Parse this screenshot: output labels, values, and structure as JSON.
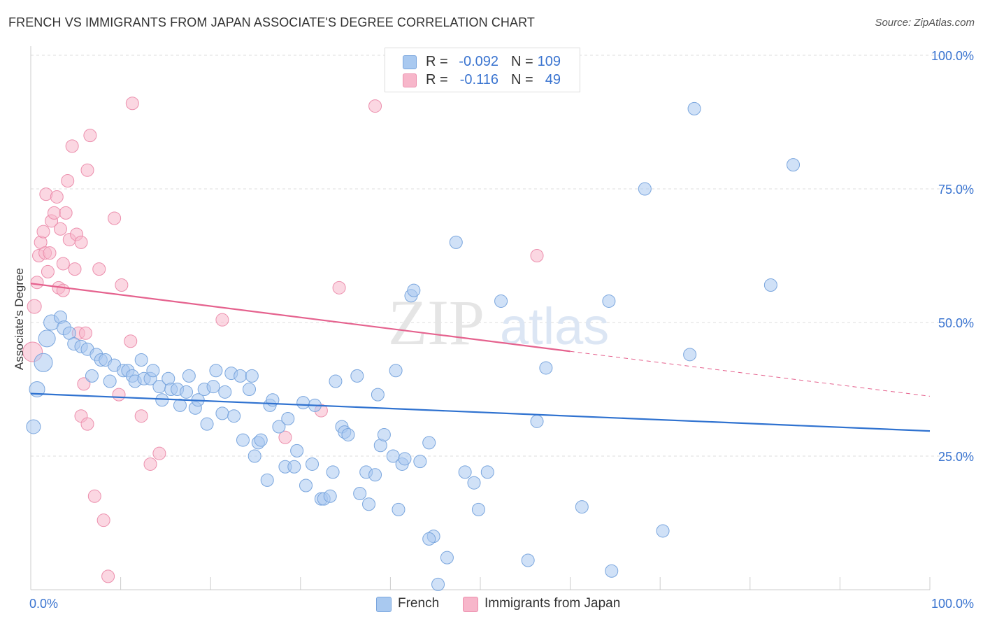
{
  "title": "FRENCH VS IMMIGRANTS FROM JAPAN ASSOCIATE'S DEGREE CORRELATION CHART",
  "source": "Source: ZipAtlas.com",
  "watermark": {
    "zip": "ZIP",
    "atlas": "atlas"
  },
  "legend": {
    "french": {
      "r_label": "R =",
      "r_value": "-0.092",
      "n_label": "N =",
      "n_value": "109"
    },
    "japan": {
      "r_label": "R =",
      "r_value": "-0.116",
      "n_label": "N =",
      "n_value": "49"
    }
  },
  "bottom_legend": {
    "french": "French",
    "japan": "Immigrants from Japan"
  },
  "colors": {
    "french_fill": "#a9c9f0",
    "french_stroke": "#7aa6de",
    "french_line": "#2f72d0",
    "japan_fill": "#f7b6ca",
    "japan_stroke": "#ec8fad",
    "japan_line": "#e5628e",
    "axis_text": "#3a74d0",
    "grid": "#dddddd"
  },
  "chart_data": {
    "type": "scatter",
    "title": "FRENCH VS IMMIGRANTS FROM JAPAN ASSOCIATE'S DEGREE CORRELATION CHART",
    "xlabel": "",
    "ylabel": "Associate's Degree",
    "xlim": [
      0,
      100
    ],
    "ylim": [
      0,
      100
    ],
    "x_tick_labels": [
      "0.0%",
      "100.0%"
    ],
    "y_ticks": [
      25,
      50,
      75,
      100
    ],
    "y_tick_labels": [
      "25.0%",
      "50.0%",
      "75.0%",
      "100.0%"
    ],
    "grid": true,
    "series": [
      {
        "name": "French",
        "r": -0.092,
        "n": 109,
        "trend": {
          "x0": 0,
          "y0": 36.7,
          "x1": 100,
          "y1": 29.7
        },
        "points": [
          [
            0.3,
            30.5,
            16
          ],
          [
            0.7,
            37.5,
            18
          ],
          [
            1.4,
            42.5,
            22
          ],
          [
            1.8,
            47,
            20
          ],
          [
            2.3,
            50,
            18
          ],
          [
            3.3,
            51,
            14
          ],
          [
            3.7,
            49,
            16
          ],
          [
            4.3,
            48,
            14
          ],
          [
            4.8,
            46,
            14
          ],
          [
            5.6,
            45.5,
            14
          ],
          [
            6.3,
            45,
            14
          ],
          [
            7.3,
            44,
            14
          ],
          [
            7.8,
            43,
            14
          ],
          [
            8.3,
            43,
            14
          ],
          [
            6.8,
            40,
            14
          ],
          [
            8.8,
            39,
            14
          ],
          [
            9.3,
            42,
            14
          ],
          [
            10.3,
            41,
            14
          ],
          [
            10.8,
            41,
            14
          ],
          [
            11.3,
            40,
            14
          ],
          [
            11.6,
            39,
            14
          ],
          [
            12.3,
            43,
            14
          ],
          [
            12.6,
            39.5,
            14
          ],
          [
            13.3,
            39.5,
            14
          ],
          [
            13.6,
            41,
            14
          ],
          [
            14.3,
            38,
            14
          ],
          [
            14.6,
            35.5,
            14
          ],
          [
            15.3,
            39.5,
            14
          ],
          [
            15.6,
            37.5,
            14
          ],
          [
            16.3,
            37.5,
            14
          ],
          [
            16.6,
            34.5,
            14
          ],
          [
            17.3,
            37,
            14
          ],
          [
            17.6,
            40,
            14
          ],
          [
            18.3,
            34,
            14
          ],
          [
            18.6,
            35.5,
            14
          ],
          [
            19.3,
            37.5,
            14
          ],
          [
            19.6,
            31,
            14
          ],
          [
            20.3,
            38,
            14
          ],
          [
            20.6,
            41,
            14
          ],
          [
            21.3,
            33,
            14
          ],
          [
            21.6,
            37,
            14
          ],
          [
            22.3,
            40.5,
            14
          ],
          [
            22.6,
            32.5,
            14
          ],
          [
            23.3,
            40,
            14
          ],
          [
            23.6,
            28,
            14
          ],
          [
            24.3,
            37.5,
            14
          ],
          [
            24.6,
            40,
            14
          ],
          [
            24.9,
            25,
            14
          ],
          [
            25.3,
            27.5,
            14
          ],
          [
            25.6,
            28,
            14
          ],
          [
            26.3,
            20.5,
            14
          ],
          [
            26.6,
            34.5,
            14
          ],
          [
            26.9,
            35.5,
            14
          ],
          [
            27.6,
            30.5,
            14
          ],
          [
            28.3,
            23,
            14
          ],
          [
            28.6,
            32,
            14
          ],
          [
            29.3,
            23,
            14
          ],
          [
            29.6,
            26,
            14
          ],
          [
            30.3,
            35,
            14
          ],
          [
            30.6,
            19.5,
            14
          ],
          [
            31.3,
            23.5,
            14
          ],
          [
            31.6,
            34.5,
            14
          ],
          [
            32.3,
            17,
            14
          ],
          [
            32.6,
            17,
            14
          ],
          [
            33.3,
            17.5,
            14
          ],
          [
            33.6,
            22,
            14
          ],
          [
            33.9,
            39,
            14
          ],
          [
            34.6,
            30.5,
            14
          ],
          [
            34.9,
            29.5,
            14
          ],
          [
            35.3,
            29,
            14
          ],
          [
            36.3,
            40,
            14
          ],
          [
            36.6,
            18,
            14
          ],
          [
            37.3,
            22,
            14
          ],
          [
            37.6,
            16,
            14
          ],
          [
            38.3,
            21.5,
            14
          ],
          [
            38.6,
            36.5,
            14
          ],
          [
            38.9,
            27,
            14
          ],
          [
            39.3,
            29,
            14
          ],
          [
            40.3,
            25,
            14
          ],
          [
            40.6,
            41,
            14
          ],
          [
            40.9,
            15,
            14
          ],
          [
            41.3,
            23.5,
            14
          ],
          [
            41.6,
            24.5,
            14
          ],
          [
            42.3,
            55,
            14
          ],
          [
            42.6,
            56,
            14
          ],
          [
            43.3,
            24,
            14
          ],
          [
            44.3,
            27.5,
            14
          ],
          [
            44.8,
            10,
            14
          ],
          [
            45.3,
            1,
            14
          ],
          [
            46.3,
            6,
            14
          ],
          [
            47.3,
            65,
            14
          ],
          [
            48.3,
            22,
            14
          ],
          [
            49.3,
            20,
            14
          ],
          [
            49.8,
            15,
            14
          ],
          [
            50.8,
            22,
            14
          ],
          [
            52.3,
            54,
            14
          ],
          [
            55.3,
            5.5,
            14
          ],
          [
            56.3,
            31.5,
            14
          ],
          [
            57.3,
            41.5,
            14
          ],
          [
            61.3,
            15.5,
            14
          ],
          [
            64.3,
            54,
            14
          ],
          [
            64.6,
            3.5,
            14
          ],
          [
            68.3,
            75,
            14
          ],
          [
            70.3,
            11,
            14
          ],
          [
            73.3,
            44,
            14
          ],
          [
            73.8,
            90,
            14
          ],
          [
            82.3,
            57,
            14
          ],
          [
            84.8,
            79.5,
            14
          ],
          [
            44.3,
            9.5,
            14
          ]
        ]
      },
      {
        "name": "Immigrants from Japan",
        "r": -0.116,
        "n": 49,
        "trend": {
          "x0": 0,
          "y0": 57.3,
          "x1": 60,
          "y1": 44.6,
          "dashed_to": {
            "x": 100,
            "y": 36.2
          }
        },
        "points": [
          [
            0.2,
            44.5,
            24
          ],
          [
            0.4,
            53,
            16
          ],
          [
            0.7,
            57.5,
            14
          ],
          [
            0.9,
            62.5,
            14
          ],
          [
            1.1,
            65,
            14
          ],
          [
            1.4,
            67,
            14
          ],
          [
            1.6,
            63,
            14
          ],
          [
            1.7,
            74,
            14
          ],
          [
            1.9,
            59.5,
            14
          ],
          [
            2.1,
            63,
            14
          ],
          [
            2.3,
            69,
            14
          ],
          [
            2.6,
            70.5,
            14
          ],
          [
            2.9,
            73.5,
            14
          ],
          [
            3.1,
            56.5,
            14
          ],
          [
            3.3,
            67.5,
            14
          ],
          [
            3.6,
            56,
            14
          ],
          [
            3.6,
            61,
            14
          ],
          [
            3.9,
            70.5,
            14
          ],
          [
            4.1,
            76.5,
            14
          ],
          [
            4.3,
            65.5,
            14
          ],
          [
            4.6,
            83,
            14
          ],
          [
            4.9,
            60,
            14
          ],
          [
            5.1,
            66.5,
            14
          ],
          [
            5.3,
            48,
            14
          ],
          [
            5.6,
            65,
            14
          ],
          [
            5.9,
            38.5,
            14
          ],
          [
            6.1,
            48,
            14
          ],
          [
            6.3,
            78.5,
            14
          ],
          [
            6.6,
            85,
            14
          ],
          [
            5.6,
            32.5,
            14
          ],
          [
            6.3,
            31,
            14
          ],
          [
            7.1,
            17.5,
            14
          ],
          [
            7.6,
            60,
            14
          ],
          [
            8.1,
            13,
            14
          ],
          [
            8.6,
            2.5,
            14
          ],
          [
            9.3,
            69.5,
            14
          ],
          [
            9.8,
            36.5,
            14
          ],
          [
            10.1,
            57,
            14
          ],
          [
            11.1,
            46.5,
            14
          ],
          [
            11.3,
            91,
            14
          ],
          [
            12.3,
            32.5,
            14
          ],
          [
            13.3,
            23.5,
            14
          ],
          [
            14.3,
            25.5,
            14
          ],
          [
            21.3,
            50.5,
            14
          ],
          [
            28.3,
            28.5,
            14
          ],
          [
            32.3,
            33.5,
            14
          ],
          [
            34.3,
            56.5,
            14
          ],
          [
            38.3,
            90.5,
            14
          ],
          [
            56.3,
            62.5,
            14
          ]
        ]
      }
    ]
  }
}
